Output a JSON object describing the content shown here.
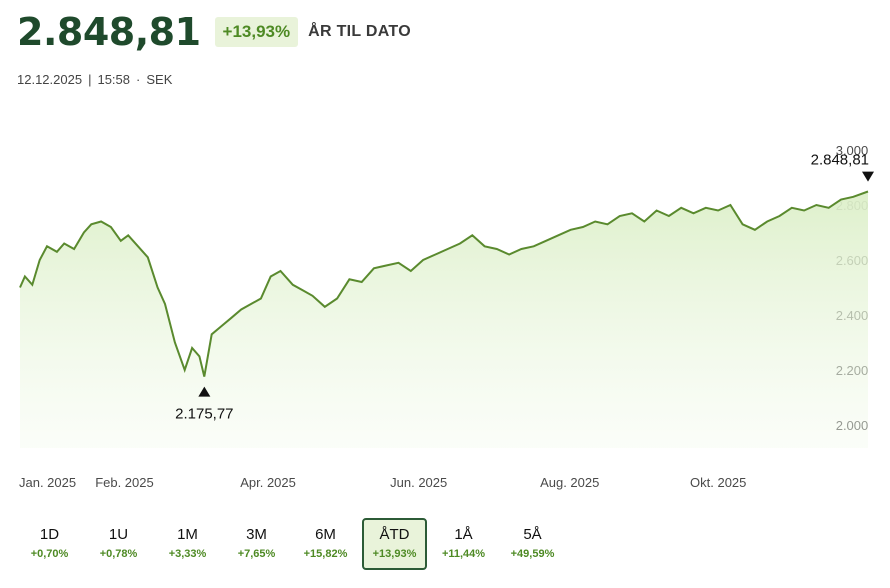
{
  "header": {
    "price": "2.848,81",
    "change": "+13,93%",
    "period_label": "ÅR TIL DATO"
  },
  "meta": {
    "date": "12.12.2025",
    "sep1": "|",
    "time": "15:58",
    "sep2": "·",
    "currency": "SEK"
  },
  "colors": {
    "line": "#5a8a2e",
    "fill_top": "#dcefc8",
    "badge_bg": "#e9f3da",
    "positive": "#4e8a24",
    "title": "#1f4a2c"
  },
  "chart_data": {
    "type": "area",
    "ylim": [
      2000,
      3000
    ],
    "yticks": [
      2000,
      2200,
      2400,
      2600,
      2800,
      3000
    ],
    "ytick_labels": [
      "2.000",
      "2.200",
      "2.400",
      "2.600",
      "2.800",
      "3.000"
    ],
    "xtick_labels": [
      "Jan. 2025",
      "Feb. 2025",
      "Apr. 2025",
      "Jun. 2025",
      "Aug. 2025",
      "Okt. 2025"
    ],
    "xlim": [
      "2025-01-01",
      "2025-12-12"
    ],
    "xtick_dates": [
      "2025-01-01",
      "2025-02-01",
      "2025-04-01",
      "2025-06-01",
      "2025-08-01",
      "2025-10-01"
    ],
    "min_annotation": {
      "date": "2025-03-17",
      "value": 2175.77,
      "label": "2.175,77"
    },
    "max_annotation": {
      "date": "2025-12-12",
      "value": 2848.81,
      "label": "2.848,81"
    },
    "x": [
      "2025-01-01",
      "2025-01-03",
      "2025-01-06",
      "2025-01-09",
      "2025-01-12",
      "2025-01-16",
      "2025-01-19",
      "2025-01-23",
      "2025-01-27",
      "2025-01-30",
      "2025-02-03",
      "2025-02-07",
      "2025-02-11",
      "2025-02-14",
      "2025-02-18",
      "2025-02-22",
      "2025-02-26",
      "2025-03-01",
      "2025-03-05",
      "2025-03-09",
      "2025-03-12",
      "2025-03-15",
      "2025-03-17",
      "2025-03-20",
      "2025-03-24",
      "2025-03-28",
      "2025-04-01",
      "2025-04-05",
      "2025-04-09",
      "2025-04-13",
      "2025-04-17",
      "2025-04-22",
      "2025-04-26",
      "2025-04-30",
      "2025-05-05",
      "2025-05-10",
      "2025-05-15",
      "2025-05-20",
      "2025-05-25",
      "2025-05-30",
      "2025-06-04",
      "2025-06-09",
      "2025-06-14",
      "2025-06-19",
      "2025-06-24",
      "2025-06-29",
      "2025-07-04",
      "2025-07-09",
      "2025-07-14",
      "2025-07-19",
      "2025-07-24",
      "2025-07-29",
      "2025-08-03",
      "2025-08-08",
      "2025-08-13",
      "2025-08-18",
      "2025-08-23",
      "2025-08-28",
      "2025-09-02",
      "2025-09-07",
      "2025-09-12",
      "2025-09-17",
      "2025-09-22",
      "2025-09-27",
      "2025-10-02",
      "2025-10-07",
      "2025-10-12",
      "2025-10-17",
      "2025-10-22",
      "2025-10-27",
      "2025-11-01",
      "2025-11-06",
      "2025-11-11",
      "2025-11-16",
      "2025-11-21",
      "2025-11-26",
      "2025-12-01",
      "2025-12-06",
      "2025-12-12"
    ],
    "values": [
      2500,
      2540,
      2510,
      2600,
      2650,
      2630,
      2660,
      2640,
      2700,
      2730,
      2740,
      2720,
      2670,
      2690,
      2650,
      2610,
      2500,
      2440,
      2300,
      2200,
      2280,
      2250,
      2176,
      2330,
      2360,
      2390,
      2420,
      2440,
      2460,
      2540,
      2560,
      2510,
      2490,
      2470,
      2430,
      2460,
      2530,
      2520,
      2570,
      2580,
      2590,
      2560,
      2600,
      2620,
      2640,
      2660,
      2690,
      2650,
      2640,
      2620,
      2640,
      2650,
      2670,
      2690,
      2710,
      2720,
      2740,
      2730,
      2760,
      2770,
      2740,
      2780,
      2760,
      2790,
      2770,
      2790,
      2780,
      2800,
      2730,
      2710,
      2740,
      2760,
      2790,
      2780,
      2800,
      2790,
      2820,
      2830,
      2849
    ]
  },
  "periods": [
    {
      "label": "1D",
      "change": "+0,70%"
    },
    {
      "label": "1U",
      "change": "+0,78%"
    },
    {
      "label": "1M",
      "change": "+3,33%"
    },
    {
      "label": "3M",
      "change": "+7,65%"
    },
    {
      "label": "6M",
      "change": "+15,82%"
    },
    {
      "label": "ÅTD",
      "change": "+13,93%",
      "active": true
    },
    {
      "label": "1Å",
      "change": "+11,44%"
    },
    {
      "label": "5Å",
      "change": "+49,59%"
    }
  ]
}
